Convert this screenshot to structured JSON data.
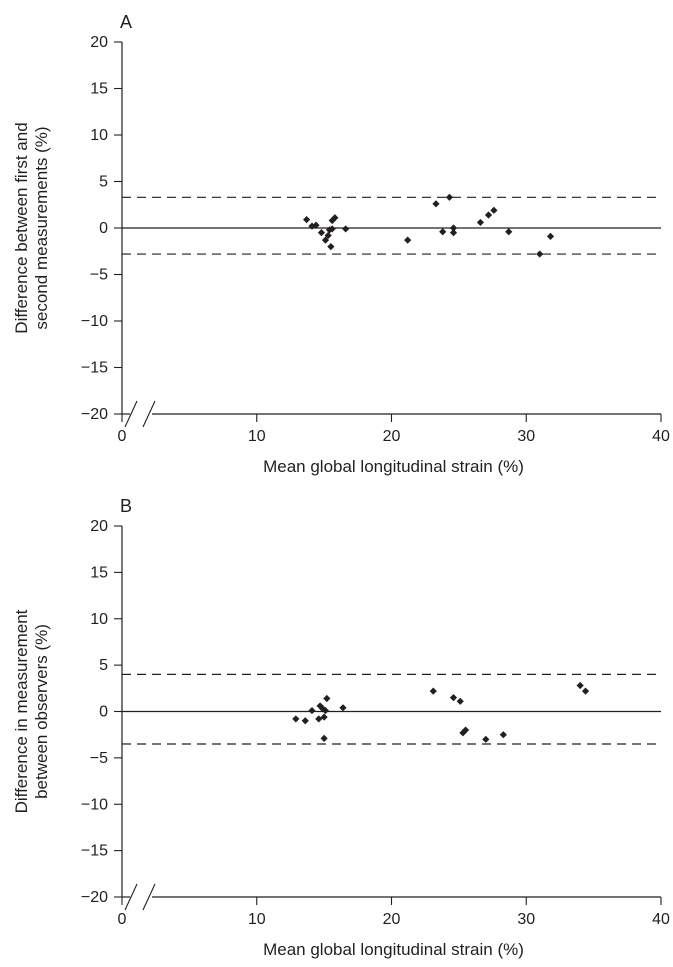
{
  "chart_data": [
    {
      "type": "scatter",
      "panel_label": "A",
      "xlabel": "Mean global longitudinal strain (%)",
      "ylabel_lines": [
        "Difference between first and",
        "second measurements (%)"
      ],
      "xlim": [
        0,
        40
      ],
      "ylim": [
        -20,
        20
      ],
      "x_axis_break": true,
      "xticks": [
        0,
        10,
        20,
        30,
        40
      ],
      "yticks": [
        20,
        15,
        10,
        5,
        0,
        -5,
        -10,
        -15,
        -20
      ],
      "xtick_labels": [
        "0",
        "10",
        "20",
        "30",
        "40"
      ],
      "ytick_labels": [
        "20",
        "15",
        "10",
        "5",
        "0",
        "−5",
        "−10",
        "−15",
        "−20"
      ],
      "reference_lines": {
        "zero": 0,
        "upper_limit": 3.3,
        "lower_limit": -2.8
      },
      "points": [
        [
          13.7,
          0.9
        ],
        [
          14.1,
          0.2
        ],
        [
          14.4,
          0.3
        ],
        [
          14.8,
          -0.5
        ],
        [
          15.1,
          -1.3
        ],
        [
          15.3,
          -0.8
        ],
        [
          15.4,
          -0.2
        ],
        [
          15.5,
          -2.0
        ],
        [
          15.6,
          0.8
        ],
        [
          15.8,
          1.1
        ],
        [
          15.6,
          -0.1
        ],
        [
          16.6,
          -0.1
        ],
        [
          21.2,
          -1.3
        ],
        [
          23.3,
          2.6
        ],
        [
          23.8,
          -0.4
        ],
        [
          24.3,
          3.3
        ],
        [
          24.6,
          0.0
        ],
        [
          24.6,
          -0.5
        ],
        [
          26.6,
          0.6
        ],
        [
          27.2,
          1.4
        ],
        [
          27.6,
          1.9
        ],
        [
          28.7,
          -0.4
        ],
        [
          31.0,
          -2.8
        ],
        [
          31.8,
          -0.9
        ]
      ],
      "grid": false,
      "marker_color": "#231f20"
    },
    {
      "type": "scatter",
      "panel_label": "B",
      "xlabel": "Mean global longitudinal strain (%)",
      "ylabel_lines": [
        "Difference in measurement",
        "between observers (%)"
      ],
      "xlim": [
        0,
        40
      ],
      "ylim": [
        -20,
        20
      ],
      "x_axis_break": true,
      "xticks": [
        0,
        10,
        20,
        30,
        40
      ],
      "yticks": [
        20,
        15,
        10,
        5,
        0,
        -5,
        -10,
        -15,
        -20
      ],
      "xtick_labels": [
        "0",
        "10",
        "20",
        "30",
        "40"
      ],
      "ytick_labels": [
        "20",
        "15",
        "10",
        "5",
        "0",
        "−5",
        "−10",
        "−15",
        "−20"
      ],
      "reference_lines": {
        "zero": 0,
        "upper_limit": 4.0,
        "lower_limit": -3.5
      },
      "points": [
        [
          12.9,
          -0.8
        ],
        [
          13.6,
          -1.0
        ],
        [
          14.1,
          0.1
        ],
        [
          14.6,
          -0.8
        ],
        [
          14.7,
          0.6
        ],
        [
          14.9,
          0.3
        ],
        [
          15.0,
          -2.9
        ],
        [
          15.0,
          -0.6
        ],
        [
          15.1,
          0.1
        ],
        [
          15.2,
          1.4
        ],
        [
          16.4,
          0.4
        ],
        [
          23.1,
          2.2
        ],
        [
          24.6,
          1.5
        ],
        [
          25.1,
          1.1
        ],
        [
          25.3,
          -2.3
        ],
        [
          25.5,
          -2.0
        ],
        [
          27.0,
          -3.0
        ],
        [
          28.3,
          -2.5
        ],
        [
          34.0,
          2.8
        ],
        [
          34.4,
          2.2
        ]
      ],
      "grid": false,
      "marker_color": "#231f20"
    }
  ]
}
